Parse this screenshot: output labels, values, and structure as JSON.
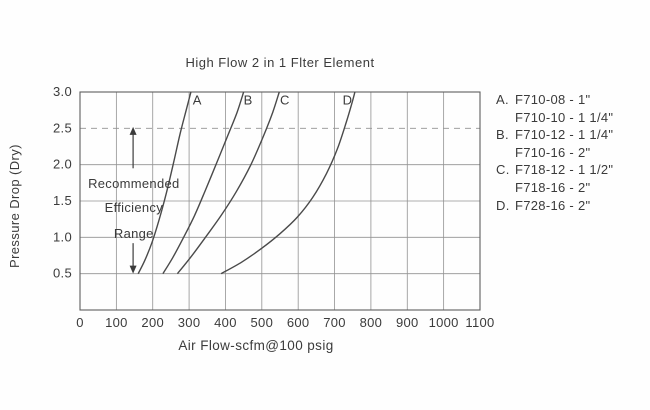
{
  "chart_data": {
    "type": "line",
    "title": "High Flow 2 in 1 Flter Element",
    "xlabel": "Air Flow-scfm@100 psig",
    "ylabel": "Pressure Drop (Dry)",
    "xlim": [
      0,
      1100
    ],
    "ylim": [
      0,
      3.0
    ],
    "x_ticks": [
      "0",
      "100",
      "200",
      "300",
      "400",
      "500",
      "600",
      "700",
      "800",
      "900",
      "1000",
      "1100"
    ],
    "y_ticks": [
      "0.5",
      "1.0",
      "1.5",
      "2.0",
      "2.5",
      "3.0"
    ],
    "grid": true,
    "dashed_y": 2.5,
    "legend_position": "right",
    "series": [
      {
        "name": "A",
        "label_x": 322,
        "label_y": 2.83,
        "points": [
          [
            160,
            0.5
          ],
          [
            178,
            0.68
          ],
          [
            198,
            0.93
          ],
          [
            218,
            1.25
          ],
          [
            238,
            1.62
          ],
          [
            257,
            2.02
          ],
          [
            275,
            2.42
          ],
          [
            292,
            2.75
          ],
          [
            305,
            3.0
          ]
        ]
      },
      {
        "name": "B",
        "label_x": 462,
        "label_y": 2.83,
        "points": [
          [
            228,
            0.5
          ],
          [
            255,
            0.72
          ],
          [
            285,
            1.0
          ],
          [
            315,
            1.3
          ],
          [
            345,
            1.65
          ],
          [
            378,
            2.05
          ],
          [
            408,
            2.42
          ],
          [
            432,
            2.72
          ],
          [
            450,
            3.0
          ]
        ]
      },
      {
        "name": "C",
        "label_x": 563,
        "label_y": 2.83,
        "points": [
          [
            268,
            0.5
          ],
          [
            305,
            0.73
          ],
          [
            345,
            1.0
          ],
          [
            388,
            1.3
          ],
          [
            430,
            1.63
          ],
          [
            470,
            2.0
          ],
          [
            505,
            2.4
          ],
          [
            530,
            2.72
          ],
          [
            548,
            3.0
          ]
        ]
      },
      {
        "name": "D",
        "label_x": 735,
        "label_y": 2.83,
        "points": [
          [
            388,
            0.5
          ],
          [
            445,
            0.66
          ],
          [
            500,
            0.85
          ],
          [
            550,
            1.05
          ],
          [
            598,
            1.28
          ],
          [
            640,
            1.55
          ],
          [
            678,
            1.88
          ],
          [
            708,
            2.22
          ],
          [
            732,
            2.58
          ],
          [
            748,
            2.85
          ],
          [
            756,
            3.0
          ]
        ]
      }
    ],
    "annotation": {
      "lines": [
        "Recommended",
        "Efficiency",
        "Range"
      ],
      "x": 148,
      "line_y": [
        1.68,
        1.35,
        0.99
      ],
      "arrow": {
        "x": 146,
        "top": 2.52,
        "upper_base": 1.95,
        "lower_base": 0.92,
        "bottom": 0.5
      }
    }
  },
  "legend": {
    "items": [
      {
        "key": "A.",
        "models": [
          "F710-08 - 1\"",
          "F710-10 - 1 1/4\""
        ]
      },
      {
        "key": "B.",
        "models": [
          "F710-12 - 1 1/4\"",
          "F710-16 - 2\""
        ]
      },
      {
        "key": "C.",
        "models": [
          "F718-12 - 1 1/2\"",
          "F718-16 - 2\""
        ]
      },
      {
        "key": "D.",
        "models": [
          "F728-16 - 2\""
        ]
      }
    ]
  }
}
